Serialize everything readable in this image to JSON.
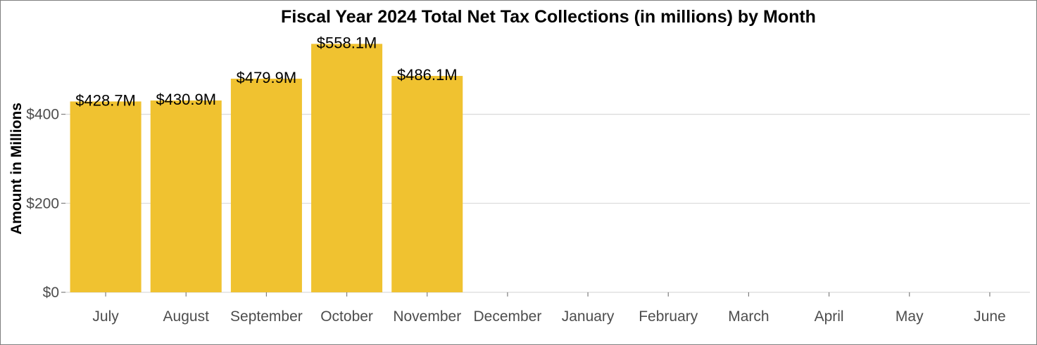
{
  "chart_data": {
    "type": "bar",
    "title": "Fiscal Year 2024 Total Net Tax Collections (in millions) by Month",
    "xlabel": "",
    "ylabel": "Amount in Millions",
    "categories": [
      "July",
      "August",
      "September",
      "October",
      "November",
      "December",
      "January",
      "February",
      "March",
      "April",
      "May",
      "June"
    ],
    "values": [
      428.7,
      430.9,
      479.9,
      558.1,
      486.1,
      null,
      null,
      null,
      null,
      null,
      null,
      null
    ],
    "data_labels": [
      "$428.7M",
      "$430.9M",
      "$479.9M",
      "$558.1M",
      "$486.1M",
      "",
      "",
      "",
      "",
      "",
      "",
      ""
    ],
    "yticks": [
      0,
      200,
      400
    ],
    "ytick_labels": [
      "$0",
      "$200",
      "$400"
    ],
    "ylim": [
      0,
      580
    ],
    "grid": "horizontal major",
    "legend": "none",
    "bar_color": "#f0c230"
  }
}
